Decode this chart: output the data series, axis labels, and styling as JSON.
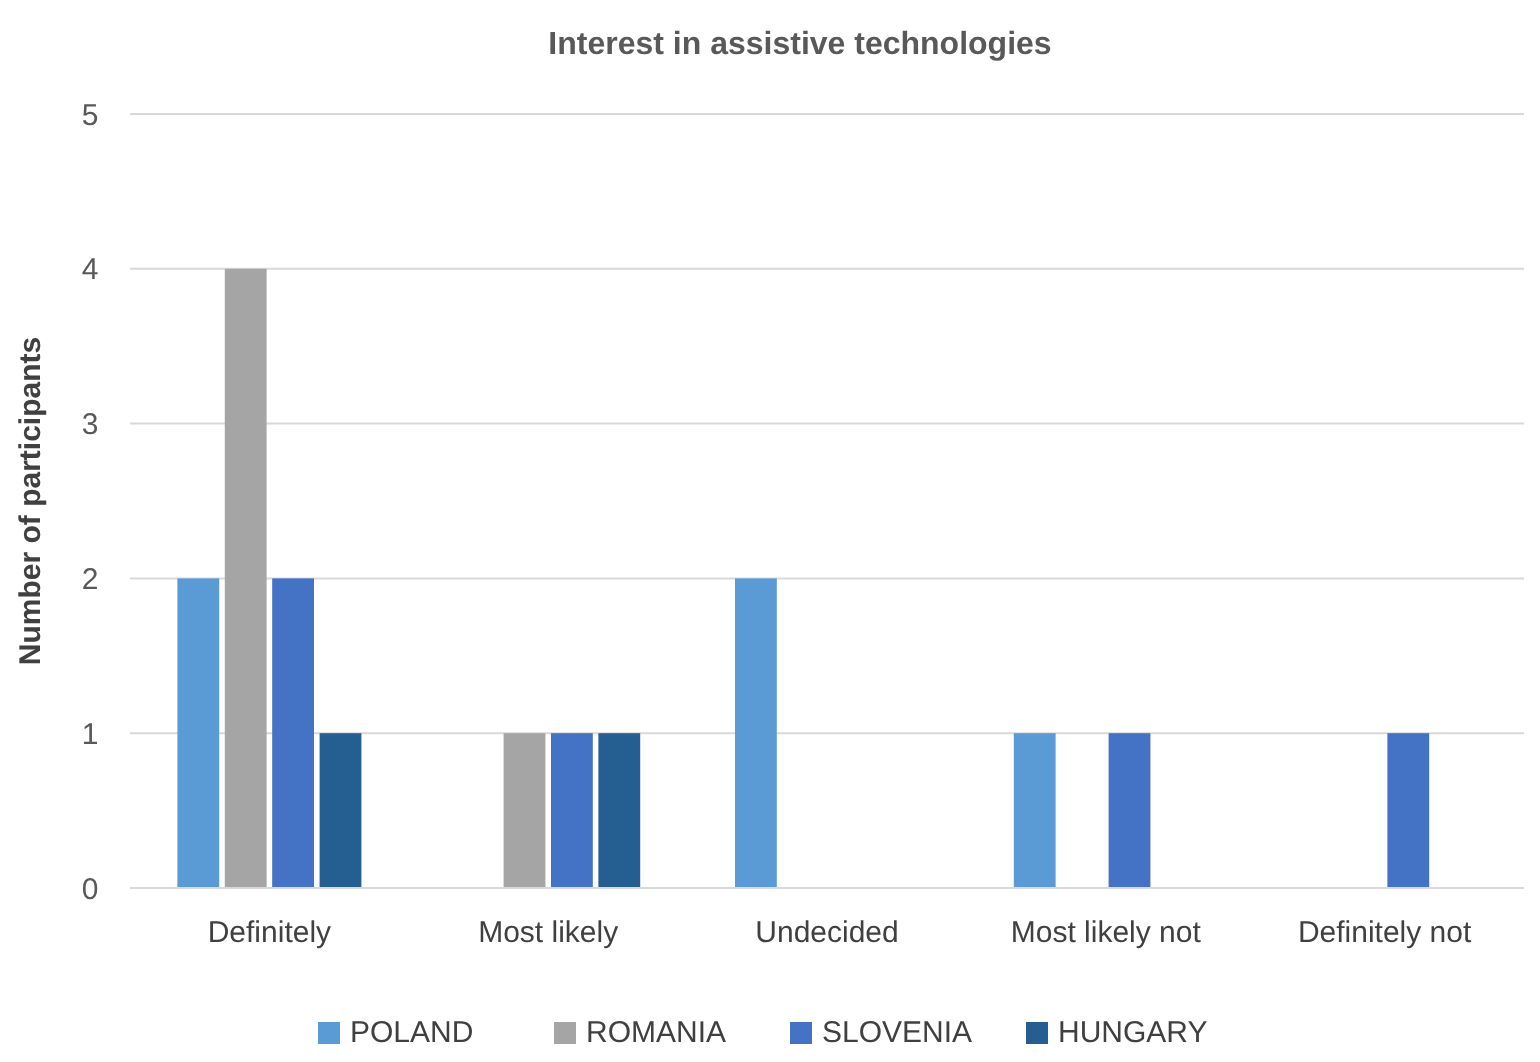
{
  "chart_data": {
    "type": "bar",
    "title": "Interest in assistive technologies",
    "ylabel": "Number of participants",
    "categories": [
      "Definitely",
      "Most likely",
      "Undecided",
      "Most likely not",
      "Definitely not"
    ],
    "series": [
      {
        "name": "POLAND",
        "color": "#5b9bd5",
        "values": [
          2,
          0,
          2,
          1,
          0
        ]
      },
      {
        "name": "ROMANIA",
        "color": "#a5a5a5",
        "values": [
          4,
          1,
          0,
          0,
          0
        ]
      },
      {
        "name": "SLOVENIA",
        "color": "#4472c4",
        "values": [
          2,
          1,
          0,
          1,
          1
        ]
      },
      {
        "name": "HUNGARY",
        "color": "#255e91",
        "values": [
          1,
          1,
          0,
          0,
          0
        ]
      }
    ],
    "ylim": [
      0,
      5
    ],
    "yticks": [
      0,
      1,
      2,
      3,
      4,
      5
    ],
    "grid": "y",
    "legend": "bottom"
  }
}
